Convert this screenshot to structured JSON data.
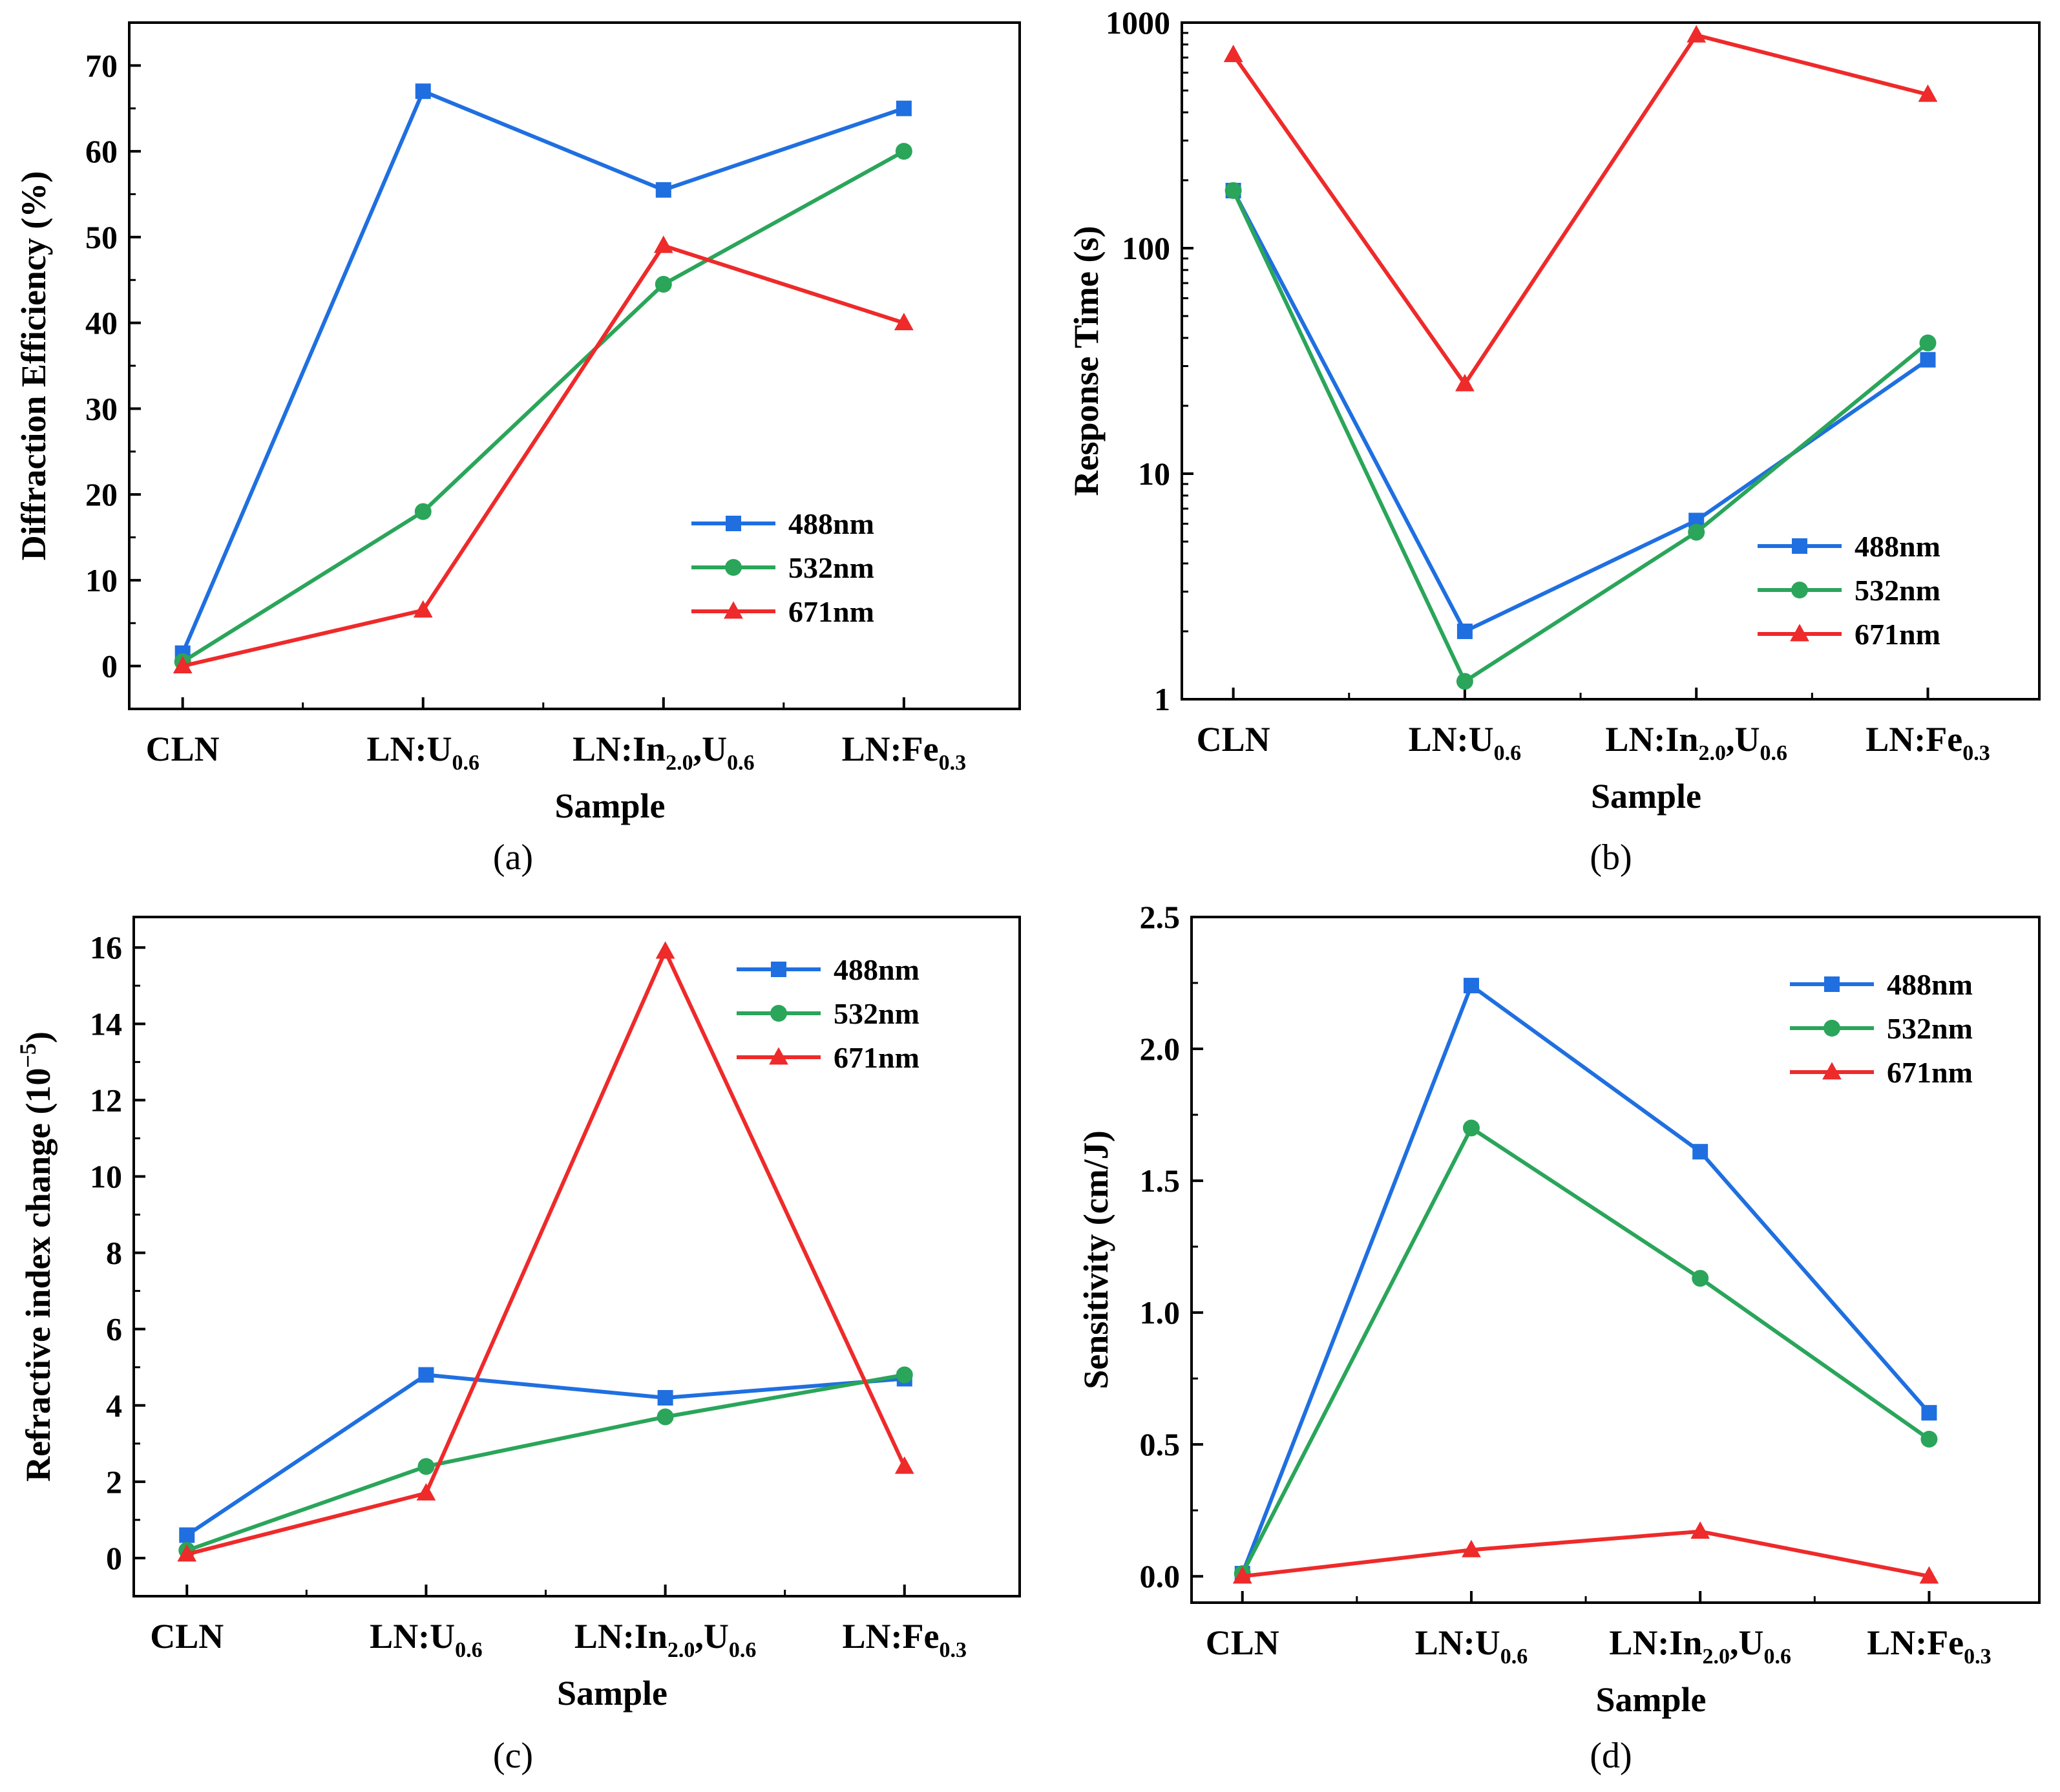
{
  "colors": {
    "blue": "#1f6fe0",
    "green": "#2aa55a",
    "red": "#ee2a2a"
  },
  "legend": [
    {
      "label": "488nm",
      "color": "#1f6fe0",
      "marker": "square"
    },
    {
      "label": "532nm",
      "color": "#2aa55a",
      "marker": "circle"
    },
    {
      "label": "671nm",
      "color": "#ee2a2a",
      "marker": "triangle"
    }
  ],
  "chart_data": [
    {
      "id": "a",
      "type": "line",
      "panel_label": "(a)",
      "categories": [
        {
          "base": "CLN",
          "parts": []
        },
        {
          "base": "LN:U",
          "parts": [
            "0.6"
          ]
        },
        {
          "base": "LN:In",
          "parts": [
            "2.0",
            ",U",
            "0.6"
          ]
        },
        {
          "base": "LN:Fe",
          "parts": [
            "0.3"
          ]
        }
      ],
      "xlabel": "Sample",
      "ylabel": "Diffraction Efficiency (%)",
      "ylim": [
        -5,
        75
      ],
      "yscale": "linear",
      "yticks": [
        0,
        10,
        20,
        30,
        40,
        50,
        60,
        70
      ],
      "ytick_labels": [
        "0",
        "10",
        "20",
        "30",
        "40",
        "50",
        "60",
        "70"
      ],
      "legend_position": "right-middle",
      "series": [
        {
          "name": "488nm",
          "values": [
            1.5,
            67,
            55.5,
            65
          ]
        },
        {
          "name": "532nm",
          "values": [
            0.5,
            18,
            44.5,
            60
          ]
        },
        {
          "name": "671nm",
          "values": [
            0,
            6.5,
            49,
            40
          ]
        }
      ]
    },
    {
      "id": "b",
      "type": "line",
      "panel_label": "(b)",
      "categories": [
        {
          "base": "CLN",
          "parts": []
        },
        {
          "base": "LN:U",
          "parts": [
            "0.6"
          ]
        },
        {
          "base": "LN:In",
          "parts": [
            "2.0",
            ",U",
            "0.6"
          ]
        },
        {
          "base": "LN:Fe",
          "parts": [
            "0.3"
          ]
        }
      ],
      "xlabel": "Sample",
      "ylabel": "Response Time (s)",
      "ylim": [
        1,
        1000
      ],
      "yscale": "log",
      "yticks": [
        1,
        10,
        100,
        1000
      ],
      "ytick_labels": [
        "1",
        "10",
        "100",
        "1000"
      ],
      "legend_position": "right-lower",
      "series": [
        {
          "name": "488nm",
          "values": [
            180,
            2,
            6.2,
            32
          ]
        },
        {
          "name": "532nm",
          "values": [
            180,
            1.2,
            5.5,
            38
          ]
        },
        {
          "name": "671nm",
          "values": [
            720,
            25,
            880,
            480
          ]
        }
      ]
    },
    {
      "id": "c",
      "type": "line",
      "panel_label": "(c)",
      "categories": [
        {
          "base": "CLN",
          "parts": []
        },
        {
          "base": "LN:U",
          "parts": [
            "0.6"
          ]
        },
        {
          "base": "LN:In",
          "parts": [
            "2.0",
            ",U",
            "0.6"
          ]
        },
        {
          "base": "LN:Fe",
          "parts": [
            "0.3"
          ]
        }
      ],
      "xlabel": "Sample",
      "ylabel": "Refractive index change (10",
      "ylabel_sup": "−5",
      "ylabel_end": ")",
      "ylim": [
        -1,
        16.8
      ],
      "yscale": "linear",
      "yticks": [
        0,
        2,
        4,
        6,
        8,
        10,
        12,
        14,
        16
      ],
      "ytick_labels": [
        "0",
        "2",
        "4",
        "6",
        "8",
        "10",
        "12",
        "14",
        "16"
      ],
      "legend_position": "top-right",
      "series": [
        {
          "name": "488nm",
          "values": [
            0.6,
            4.8,
            4.2,
            4.7
          ]
        },
        {
          "name": "532nm",
          "values": [
            0.2,
            2.4,
            3.7,
            4.8
          ]
        },
        {
          "name": "671nm",
          "values": [
            0.1,
            1.7,
            15.9,
            2.4
          ]
        }
      ]
    },
    {
      "id": "d",
      "type": "line",
      "panel_label": "(d)",
      "categories": [
        {
          "base": "CLN",
          "parts": []
        },
        {
          "base": "LN:U",
          "parts": [
            "0.6"
          ]
        },
        {
          "base": "LN:In",
          "parts": [
            "2.0",
            ",U",
            "0.6"
          ]
        },
        {
          "base": "LN:Fe",
          "parts": [
            "0.3"
          ]
        }
      ],
      "xlabel": "Sample",
      "ylabel": "Sensitivity (cm/J)",
      "ylim": [
        -0.1,
        2.5
      ],
      "yscale": "linear",
      "yticks": [
        0,
        0.5,
        1,
        1.5,
        2,
        2.5
      ],
      "ytick_labels": [
        "0.0",
        "0.5",
        "1.0",
        "1.5",
        "2.0",
        "2.5"
      ],
      "legend_position": "top-right",
      "series": [
        {
          "name": "488nm",
          "values": [
            0.01,
            2.24,
            1.61,
            0.62
          ]
        },
        {
          "name": "532nm",
          "values": [
            0.01,
            1.7,
            1.13,
            0.52
          ]
        },
        {
          "name": "671nm",
          "values": [
            0,
            0.1,
            0.17,
            0
          ]
        }
      ]
    }
  ]
}
